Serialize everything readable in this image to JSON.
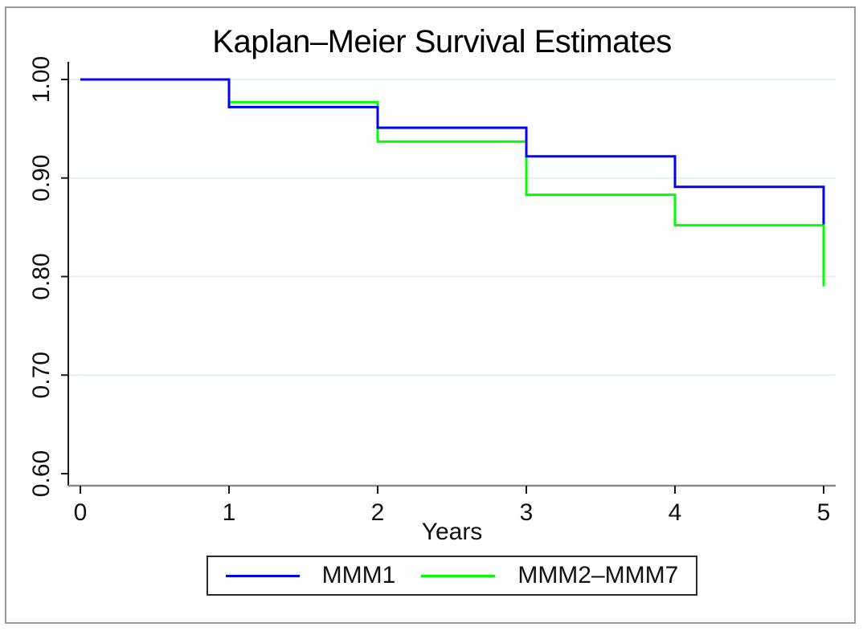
{
  "figure": {
    "title": "Kaplan–Meier Survival Estimates",
    "x_axis_title": "Years"
  },
  "legend": {
    "position": "bottom-center",
    "items": [
      {
        "label": "MMM1",
        "color": "#0000ff"
      },
      {
        "label": "MMM2–MMM7",
        "color": "#00ff00"
      }
    ]
  },
  "colors": {
    "background": "#ffffff",
    "frame_border": "#9a9a9a",
    "gridline": "#e4eef4",
    "y_axis_line": "#1a1a1a",
    "x_axis_line": "#8a8a8a",
    "tick_mark": "#1a1a1a",
    "text": "#111111",
    "series_blue": "#0000ff",
    "series_green": "#00ff00"
  },
  "chart_data": {
    "type": "line",
    "subtype": "kaplan-meier-step",
    "title": "Kaplan–Meier Survival Estimates",
    "xlabel": "Years",
    "ylabel": "",
    "xlim": [
      0,
      5
    ],
    "ylim": [
      0.6,
      1.0
    ],
    "xticks": [
      0,
      1,
      2,
      3,
      4,
      5
    ],
    "xtick_labels": [
      "0",
      "1",
      "2",
      "3",
      "4",
      "5"
    ],
    "yticks": [
      1.0,
      0.9,
      0.8,
      0.7,
      0.6
    ],
    "ytick_labels": [
      "1.00",
      "0.90",
      "0.80",
      "0.70",
      "0.60"
    ],
    "grid": "horizontal",
    "grid_yticks": [
      1.0,
      0.9,
      0.8,
      0.7
    ],
    "legend_position": "bottom-center",
    "series": [
      {
        "name": "MMM1",
        "color": "#0000ff",
        "points": [
          [
            0,
            1.0
          ],
          [
            1,
            1.0
          ],
          [
            1,
            0.972
          ],
          [
            2,
            0.972
          ],
          [
            2,
            0.951
          ],
          [
            3,
            0.951
          ],
          [
            3,
            0.922
          ],
          [
            4,
            0.922
          ],
          [
            4,
            0.891
          ],
          [
            5,
            0.891
          ],
          [
            5,
            0.853
          ]
        ]
      },
      {
        "name": "MMM2–MMM7",
        "color": "#00ff00",
        "points": [
          [
            0,
            1.0
          ],
          [
            1,
            1.0
          ],
          [
            1,
            0.977
          ],
          [
            2,
            0.977
          ],
          [
            2,
            0.937
          ],
          [
            3,
            0.937
          ],
          [
            3,
            0.883
          ],
          [
            4,
            0.883
          ],
          [
            4,
            0.852
          ],
          [
            5,
            0.852
          ],
          [
            5,
            0.79
          ]
        ]
      }
    ]
  }
}
